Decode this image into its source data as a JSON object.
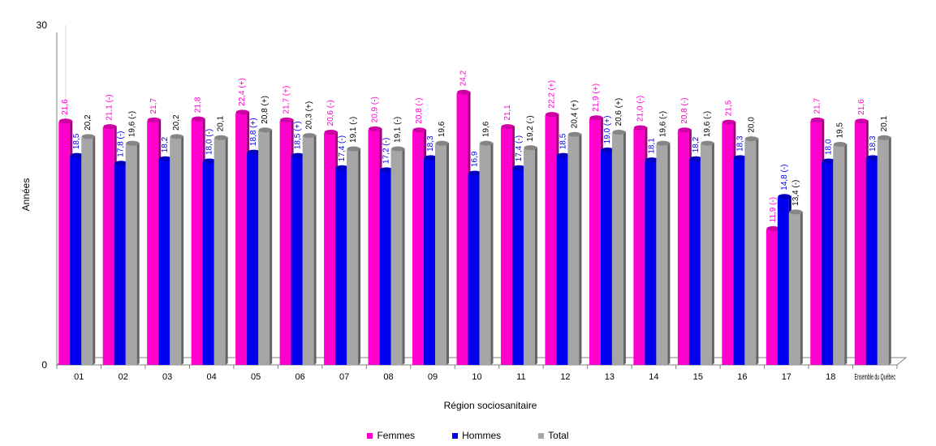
{
  "chart_data": {
    "type": "bar",
    "ylabel": "Années",
    "xlabel": "Région sociosanitaire",
    "ylim": [
      0,
      30
    ],
    "y_ticks": [
      "0",
      "30"
    ],
    "categories": [
      "01",
      "02",
      "03",
      "04",
      "05",
      "06",
      "07",
      "08",
      "09",
      "10",
      "11",
      "12",
      "13",
      "14",
      "15",
      "16",
      "17",
      "18",
      "Ensemble du Québec"
    ],
    "series": [
      {
        "name": "Femmes",
        "color": "#ff00cc",
        "values": [
          21.6,
          21.1,
          21.7,
          21.8,
          22.4,
          21.7,
          20.6,
          20.9,
          20.8,
          24.2,
          21.1,
          22.2,
          21.9,
          21.0,
          20.8,
          21.5,
          11.9,
          21.7,
          21.6
        ],
        "labels": [
          "21,6",
          "21,1 (-)",
          "21,7",
          "21,8",
          "22,4 (+)",
          "21,7 (+)",
          "20,6 (-)",
          "20,9 (-)",
          "20,8 (-)",
          "24,2",
          "21,1",
          "22,2 (+)",
          "21,9 (+)",
          "21,0 (-)",
          "20,8 (-)",
          "21,5",
          "11,9 (-)",
          "21,7",
          "21,6"
        ]
      },
      {
        "name": "Hommes",
        "color": "#0000ee",
        "values": [
          18.5,
          17.8,
          18.2,
          18.0,
          18.8,
          18.5,
          17.4,
          17.2,
          18.3,
          16.9,
          17.4,
          18.5,
          19.0,
          18.1,
          18.2,
          18.3,
          14.8,
          18.0,
          18.3
        ],
        "labels": [
          "18,5",
          "17,8 (-)",
          "18,2",
          "18,0 (-)",
          "18,8 (+)",
          "18,5 (+)",
          "17,4 (-)",
          "17,2 (-)",
          "18,3",
          "16,9",
          "17,4 (-)",
          "18,5",
          "19,0 (+)",
          "18,1",
          "18,2",
          "18,3",
          "14,8 (-)",
          "18,0",
          "18,3"
        ]
      },
      {
        "name": "Total",
        "color": "#a6a6a6",
        "values": [
          20.2,
          19.6,
          20.2,
          20.1,
          20.8,
          20.3,
          19.1,
          19.1,
          19.6,
          19.6,
          19.2,
          20.4,
          20.6,
          19.6,
          19.6,
          20.0,
          13.4,
          19.5,
          20.1
        ],
        "labels": [
          "20,2",
          "19,6 (-)",
          "20,2",
          "20,1",
          "20,8 (+)",
          "20,3 (+)",
          "19,1 (-)",
          "19,1 (-)",
          "19,6",
          "19,6",
          "19,2 (-)",
          "20,4 (+)",
          "20,6 (+)",
          "19,6 (-)",
          "19,6 (-)",
          "20,0",
          "13,4 (-)",
          "19,5",
          "20,1"
        ]
      }
    ],
    "label_colors": [
      "#ff00cc",
      "#0000ee",
      "#000000"
    ],
    "grid": false,
    "legend_position": "bottom"
  }
}
